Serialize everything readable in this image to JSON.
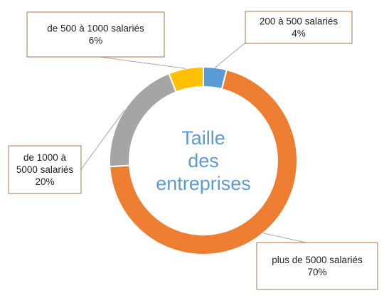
{
  "chart_data": {
    "type": "pie",
    "donut": true,
    "title": "",
    "center_label": [
      "Taille",
      "des",
      "entreprises"
    ],
    "legend": "none",
    "slices": [
      {
        "name": "200 à 500 salariés",
        "label_lines": [
          "200 à 500 salariés"
        ],
        "value": 4,
        "display": "4%",
        "color": "#5b9bd5"
      },
      {
        "name": "plus de 5000 salariés",
        "label_lines": [
          "plus de 5000 salariés"
        ],
        "value": 70,
        "display": "70%",
        "color": "#ed7d31"
      },
      {
        "name": "de 1000 à 5000 salariés",
        "label_lines": [
          "de 1000 à",
          "5000 salariés"
        ],
        "value": 20,
        "display": "20%",
        "color": "#a5a5a5"
      },
      {
        "name": "de 500 à 1000 salariés",
        "label_lines": [
          "de 500 à 1000 salariés"
        ],
        "value": 6,
        "display": "6%",
        "color": "#ffc000"
      }
    ]
  }
}
